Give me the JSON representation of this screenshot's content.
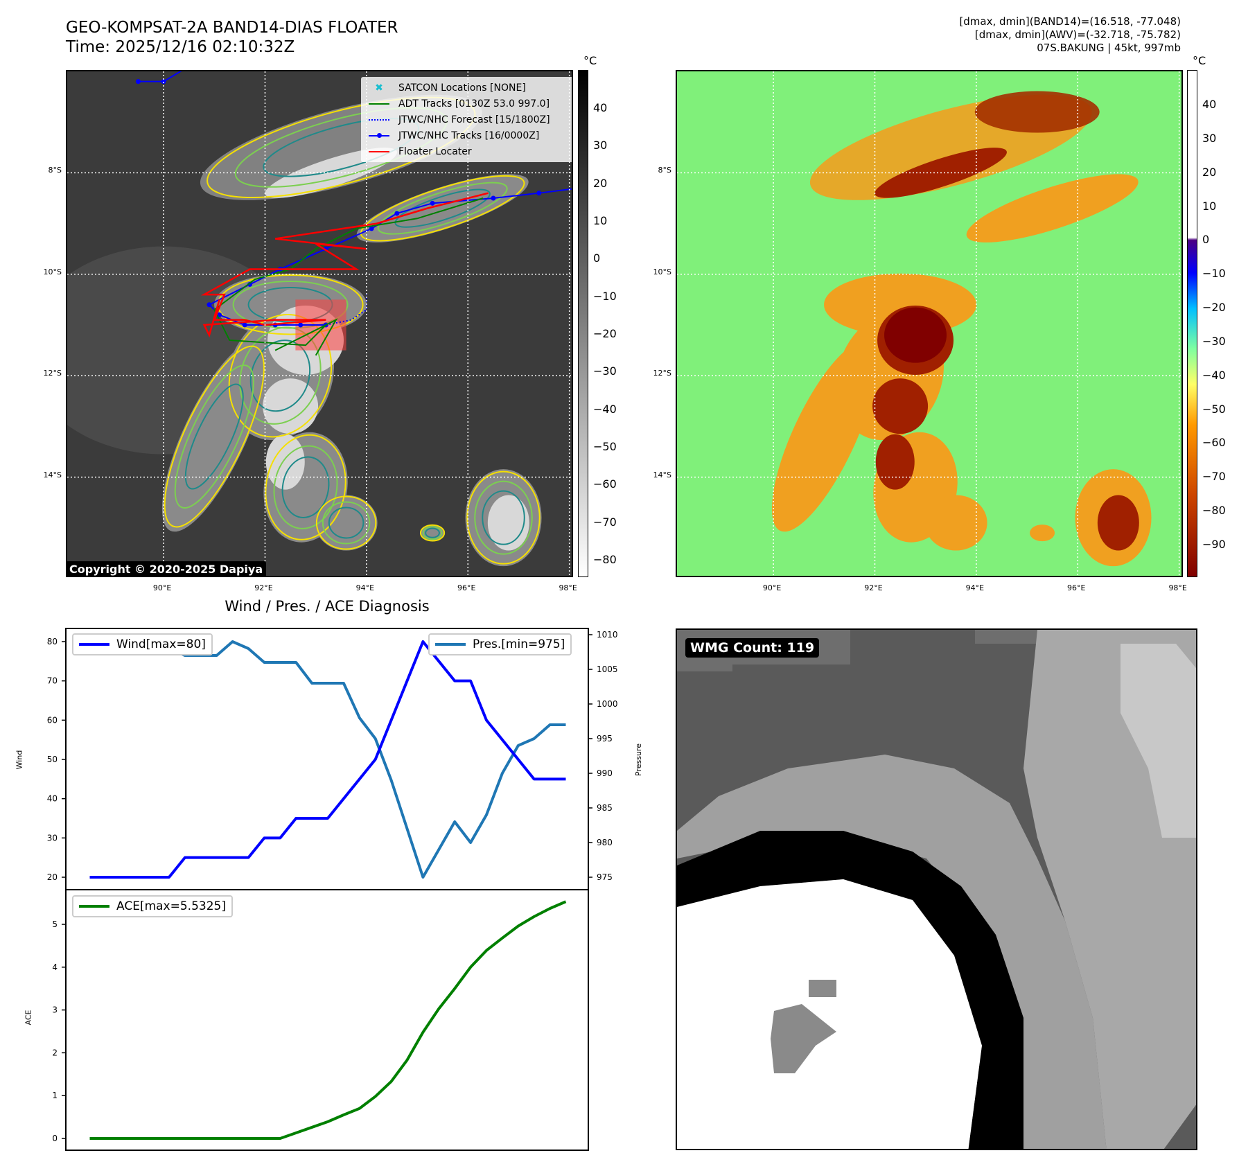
{
  "header": {
    "title": "GEO-KOMPSAT-2A BAND14-DIAS FLOATER",
    "time": "Time: 2025/12/16 02:10:32Z",
    "info_lines": [
      "[dmax, dmin](BAND14)=(16.518, -77.048)",
      "[dmax, dmin](AWV)=(-32.718, -75.782)",
      "07S.BAKUNG | 45kt, 997mb"
    ]
  },
  "map": {
    "lon_ticks": [
      "90°E",
      "92°E",
      "94°E",
      "96°E",
      "98°E"
    ],
    "lat_ticks": [
      "8°S",
      "10°S",
      "12°S",
      "14°S"
    ],
    "legend": [
      {
        "label": "SATCON Locations [NONE]",
        "color": "#17becf",
        "style": "x"
      },
      {
        "label": "ADT Tracks [0130Z 53.0 997.0]",
        "color": "#008000",
        "style": "solid"
      },
      {
        "label": "JTWC/NHC Forecast [15/1800Z]",
        "color": "#0000ff",
        "style": "dotted"
      },
      {
        "label": "JTWC/NHC Tracks [16/0000Z]",
        "color": "#0000ff",
        "style": "marker"
      },
      {
        "label": "Floater Locater",
        "color": "#ff0000",
        "style": "solid"
      }
    ],
    "copyright": "Copyright © 2020-2025 Dapiya",
    "cbar_unit": "°C",
    "cbar_left_ticks": [
      "40",
      "30",
      "20",
      "10",
      "0",
      "−10",
      "−20",
      "−30",
      "−40",
      "−50",
      "−60",
      "−70",
      "−80"
    ],
    "cbar_right_ticks": [
      "40",
      "30",
      "20",
      "10",
      "0",
      "−10",
      "−20",
      "−30",
      "−40",
      "−50",
      "−60",
      "−70",
      "−80",
      "−90"
    ]
  },
  "wmg": {
    "label": "WMG Count: 119"
  },
  "chart_data": [
    {
      "type": "line",
      "title": "Wind / Pres. / ACE Diagnosis",
      "ylabel": "Wind",
      "y2label": "Pressure",
      "ylim": [
        18,
        83
      ],
      "y2lim": [
        973,
        1011
      ],
      "yticks": [
        "20",
        "30",
        "40",
        "50",
        "60",
        "70",
        "80"
      ],
      "y2ticks": [
        "975",
        "980",
        "985",
        "990",
        "995",
        "1000",
        "1005",
        "1010"
      ],
      "series": [
        {
          "name": "Wind[max=80]",
          "color": "#0000ff",
          "axis": "left",
          "values": [
            20,
            20,
            20,
            20,
            20,
            20,
            25,
            25,
            25,
            25,
            25,
            30,
            30,
            35,
            35,
            35,
            40,
            45,
            50,
            60,
            70,
            80,
            75,
            70,
            70,
            60,
            55,
            50,
            45,
            45,
            45
          ]
        },
        {
          "name": "Pres.[min=975]",
          "color": "#1f77b4",
          "axis": "right",
          "values": [
            1008,
            1008,
            1008,
            1008,
            1008,
            1008,
            1007,
            1007,
            1007,
            1009,
            1008,
            1006,
            1006,
            1006,
            1003,
            1003,
            1003,
            998,
            995,
            989,
            982,
            975,
            979,
            983,
            980,
            984,
            990,
            994,
            995,
            997,
            997
          ]
        }
      ]
    },
    {
      "type": "line",
      "ylabel": "ACE",
      "ylim": [
        -0.25,
        5.8
      ],
      "yticks": [
        "0",
        "1",
        "2",
        "3",
        "4",
        "5"
      ],
      "series": [
        {
          "name": "ACE[max=5.5325]",
          "color": "#008000",
          "values": [
            0,
            0,
            0,
            0,
            0,
            0,
            0,
            0,
            0,
            0,
            0,
            0,
            0,
            0.13,
            0.26,
            0.39,
            0.55,
            0.7,
            0.98,
            1.33,
            1.83,
            2.48,
            3.03,
            3.5,
            4.0,
            4.39,
            4.68,
            4.96,
            5.18,
            5.37,
            5.53
          ]
        }
      ]
    }
  ]
}
